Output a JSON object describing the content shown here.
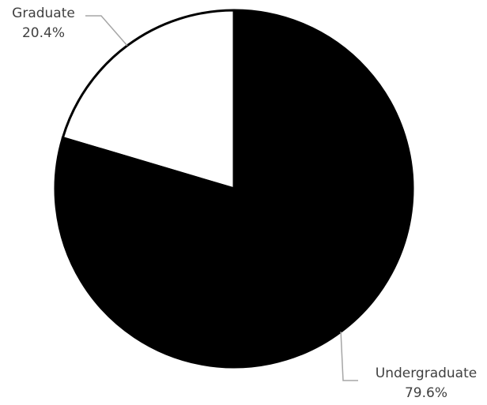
{
  "chart_data": {
    "type": "pie",
    "title": "",
    "categories": [
      "Graduate",
      "Undergraduate"
    ],
    "values": [
      20.4,
      79.6
    ],
    "value_labels": [
      "20.4%",
      "79.6%"
    ],
    "slice_colors": [
      "#ffffff",
      "#000000"
    ],
    "slice_border_color": "#000000",
    "leader_line_color": "#a6a6a6",
    "label_color": "#404040",
    "legend": "none",
    "start_angle_deg": 0,
    "direction": "counterclockwise"
  }
}
